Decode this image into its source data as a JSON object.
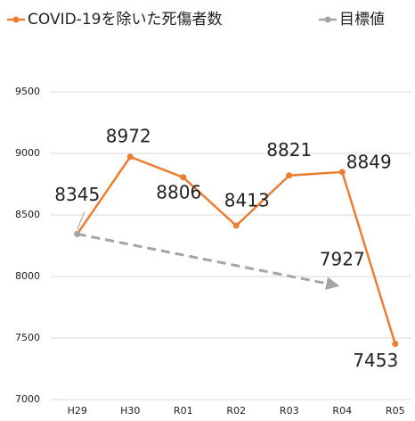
{
  "chart_data": {
    "type": "line",
    "categories": [
      "H29",
      "H30",
      "R01",
      "R02",
      "R03",
      "R04",
      "R05"
    ],
    "series": [
      {
        "name": "COVID-19を除いた死傷者数",
        "color": "#ed7d31",
        "values": [
          8345,
          8972,
          8806,
          8413,
          8821,
          8849,
          7453
        ]
      },
      {
        "name": "目標値",
        "color": "#a5a5a5",
        "values": [
          8345,
          null,
          null,
          null,
          null,
          7927,
          null
        ]
      }
    ],
    "ylim": [
      7000,
      9500
    ],
    "yticks": [
      7000,
      7500,
      8000,
      8500,
      9000,
      9500
    ],
    "grid": true
  }
}
